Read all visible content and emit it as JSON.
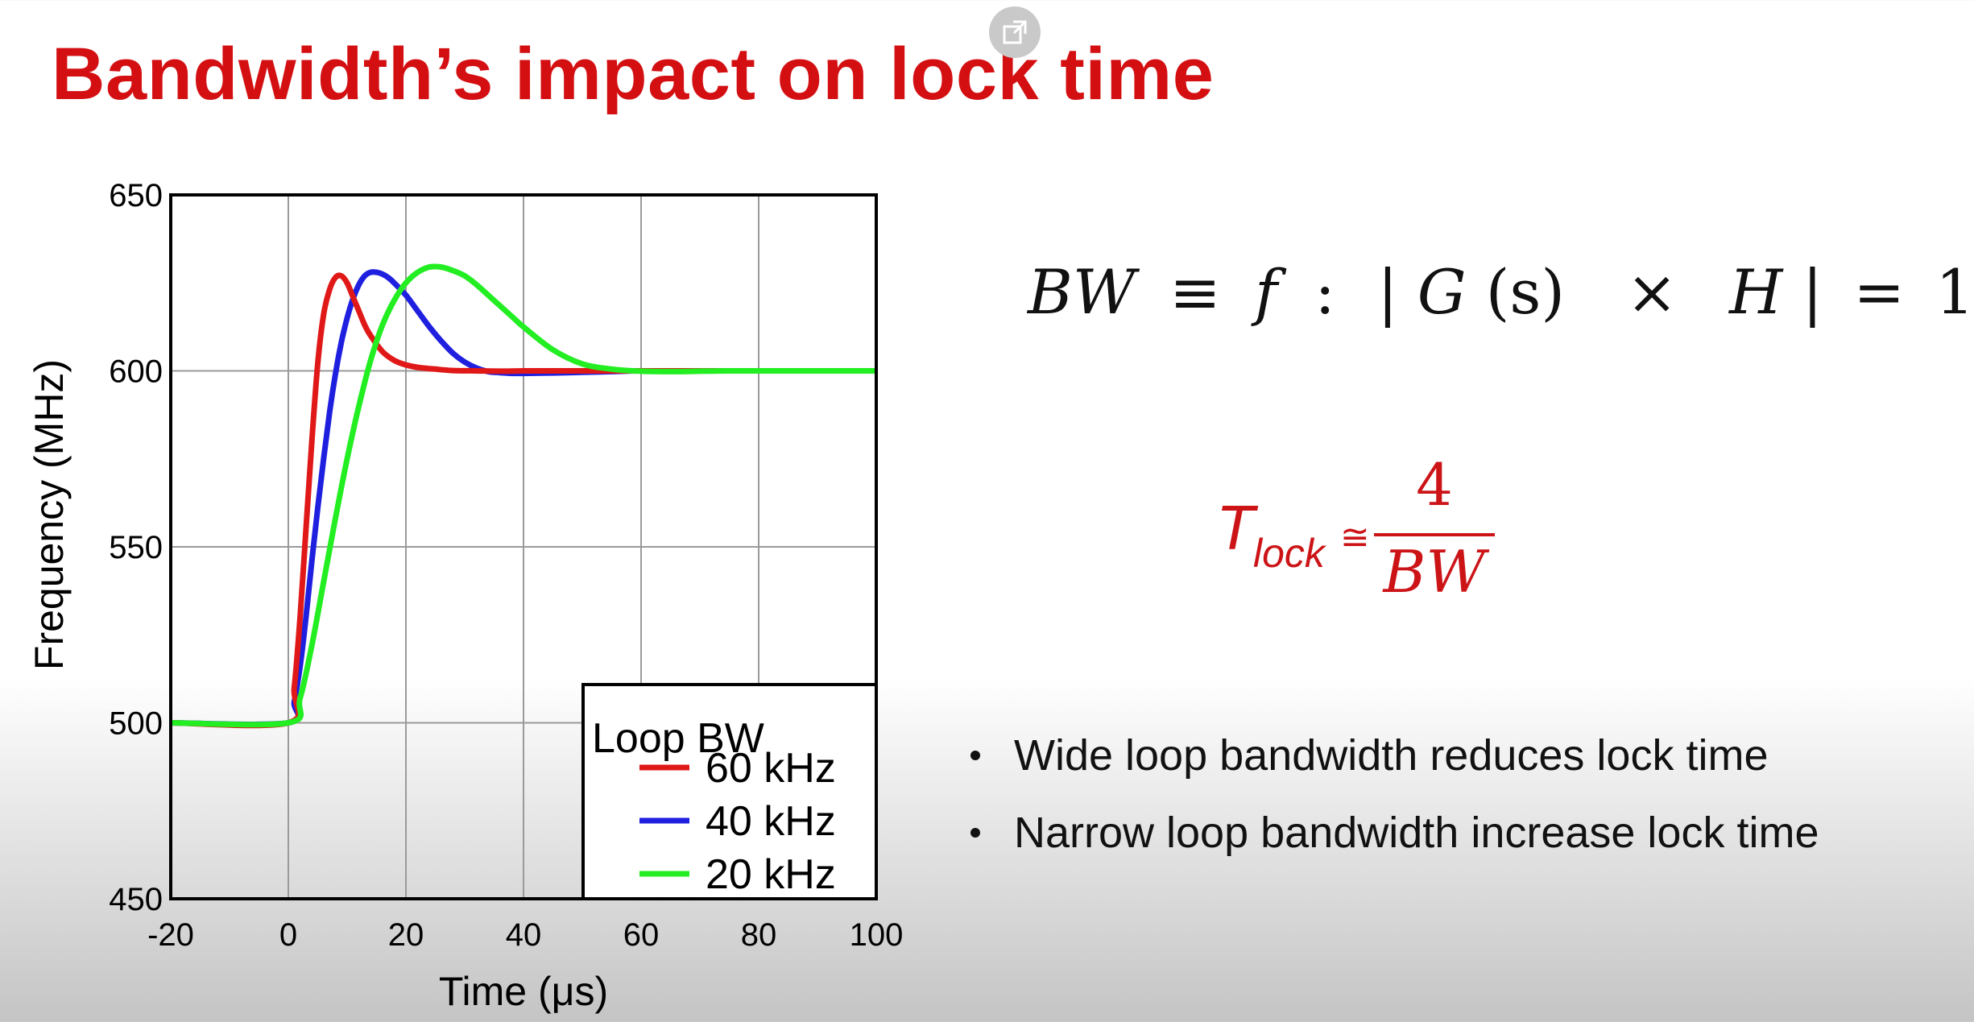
{
  "slide": {
    "title": "Bandwidth’s impact on lock time",
    "popout_icon": "external-link-icon"
  },
  "equation": {
    "bw": "BW",
    "equiv": "≡",
    "f": "f",
    "colon": ":",
    "bar_open": "|",
    "G": "G",
    "s": "(s)",
    "times": "×",
    "H": "H",
    "bar_close": "|",
    "eq": "=",
    "one": "1"
  },
  "tlock": {
    "T": "T",
    "sub": "lock",
    "approx": "≅",
    "numerator": "4",
    "denominator": "BW",
    "color": "#cc1417"
  },
  "bullets": [
    "Wide loop bandwidth reduces lock time",
    "Narrow loop bandwidth increase lock time"
  ],
  "chart_data": {
    "type": "line",
    "xlabel": "Time (μs)",
    "ylabel": "Frequency (MHz)",
    "xlim": [
      -20,
      100
    ],
    "ylim": [
      450,
      650
    ],
    "xticks": [
      "-20",
      "0",
      "20",
      "40",
      "60",
      "80",
      "100"
    ],
    "yticks": [
      "450",
      "500",
      "550",
      "600",
      "650"
    ],
    "grid": true,
    "legend": {
      "title": "Loop BW",
      "placement": "bottom-right"
    },
    "series": [
      {
        "name": "60 kHz",
        "color": "#e01818",
        "x": [
          -20,
          0,
          1,
          2,
          3,
          4,
          5,
          6,
          7,
          8,
          9,
          10,
          11,
          12,
          13,
          14,
          16,
          18,
          20,
          22,
          25,
          28,
          32,
          36,
          40,
          45,
          50,
          60,
          70,
          80,
          90,
          100
        ],
        "y": [
          500,
          500,
          510,
          530,
          555,
          580,
          602,
          616,
          623,
          626.5,
          627,
          625,
          621,
          617,
          613,
          610,
          605.5,
          603,
          601.7,
          601,
          600.5,
          600.1,
          600,
          599.9,
          600,
          600,
          600,
          600,
          600,
          600,
          600,
          600
        ]
      },
      {
        "name": "40 kHz",
        "color": "#1f1fe0",
        "x": [
          -20,
          0,
          1,
          2,
          3,
          4,
          5,
          6,
          7,
          8,
          9,
          10,
          11,
          12,
          13,
          14,
          15,
          16,
          17,
          18,
          20,
          22,
          24,
          26,
          28,
          30,
          32,
          34,
          36,
          38,
          40,
          45,
          50,
          55,
          60,
          70,
          80,
          90,
          100
        ],
        "y": [
          500,
          500,
          506,
          516,
          530,
          546,
          561,
          575,
          588,
          599,
          608,
          615,
          620.5,
          624.5,
          627,
          628,
          628,
          627.5,
          626.5,
          625,
          621.5,
          617,
          612.5,
          608.5,
          605,
          602.5,
          600.8,
          599.8,
          599.5,
          599.3,
          599.3,
          599.4,
          599.6,
          599.8,
          600,
          600,
          600,
          600,
          600
        ]
      },
      {
        "name": "20 kHz",
        "color": "#22ee22",
        "x": [
          -20,
          0,
          2,
          4,
          6,
          8,
          10,
          12,
          14,
          16,
          18,
          20,
          22,
          24,
          26,
          28,
          30,
          32,
          35,
          38,
          40,
          45,
          50,
          55,
          60,
          65,
          70,
          75,
          80,
          90,
          100
        ],
        "y": [
          500,
          500,
          507,
          522,
          540,
          558,
          575,
          590,
          603,
          613,
          620,
          625,
          628,
          629.5,
          629.5,
          628.5,
          627,
          624.5,
          620,
          615.5,
          612.5,
          606,
          602,
          600.5,
          599.9,
          599.8,
          599.9,
          600,
          600,
          600,
          600
        ]
      }
    ]
  }
}
